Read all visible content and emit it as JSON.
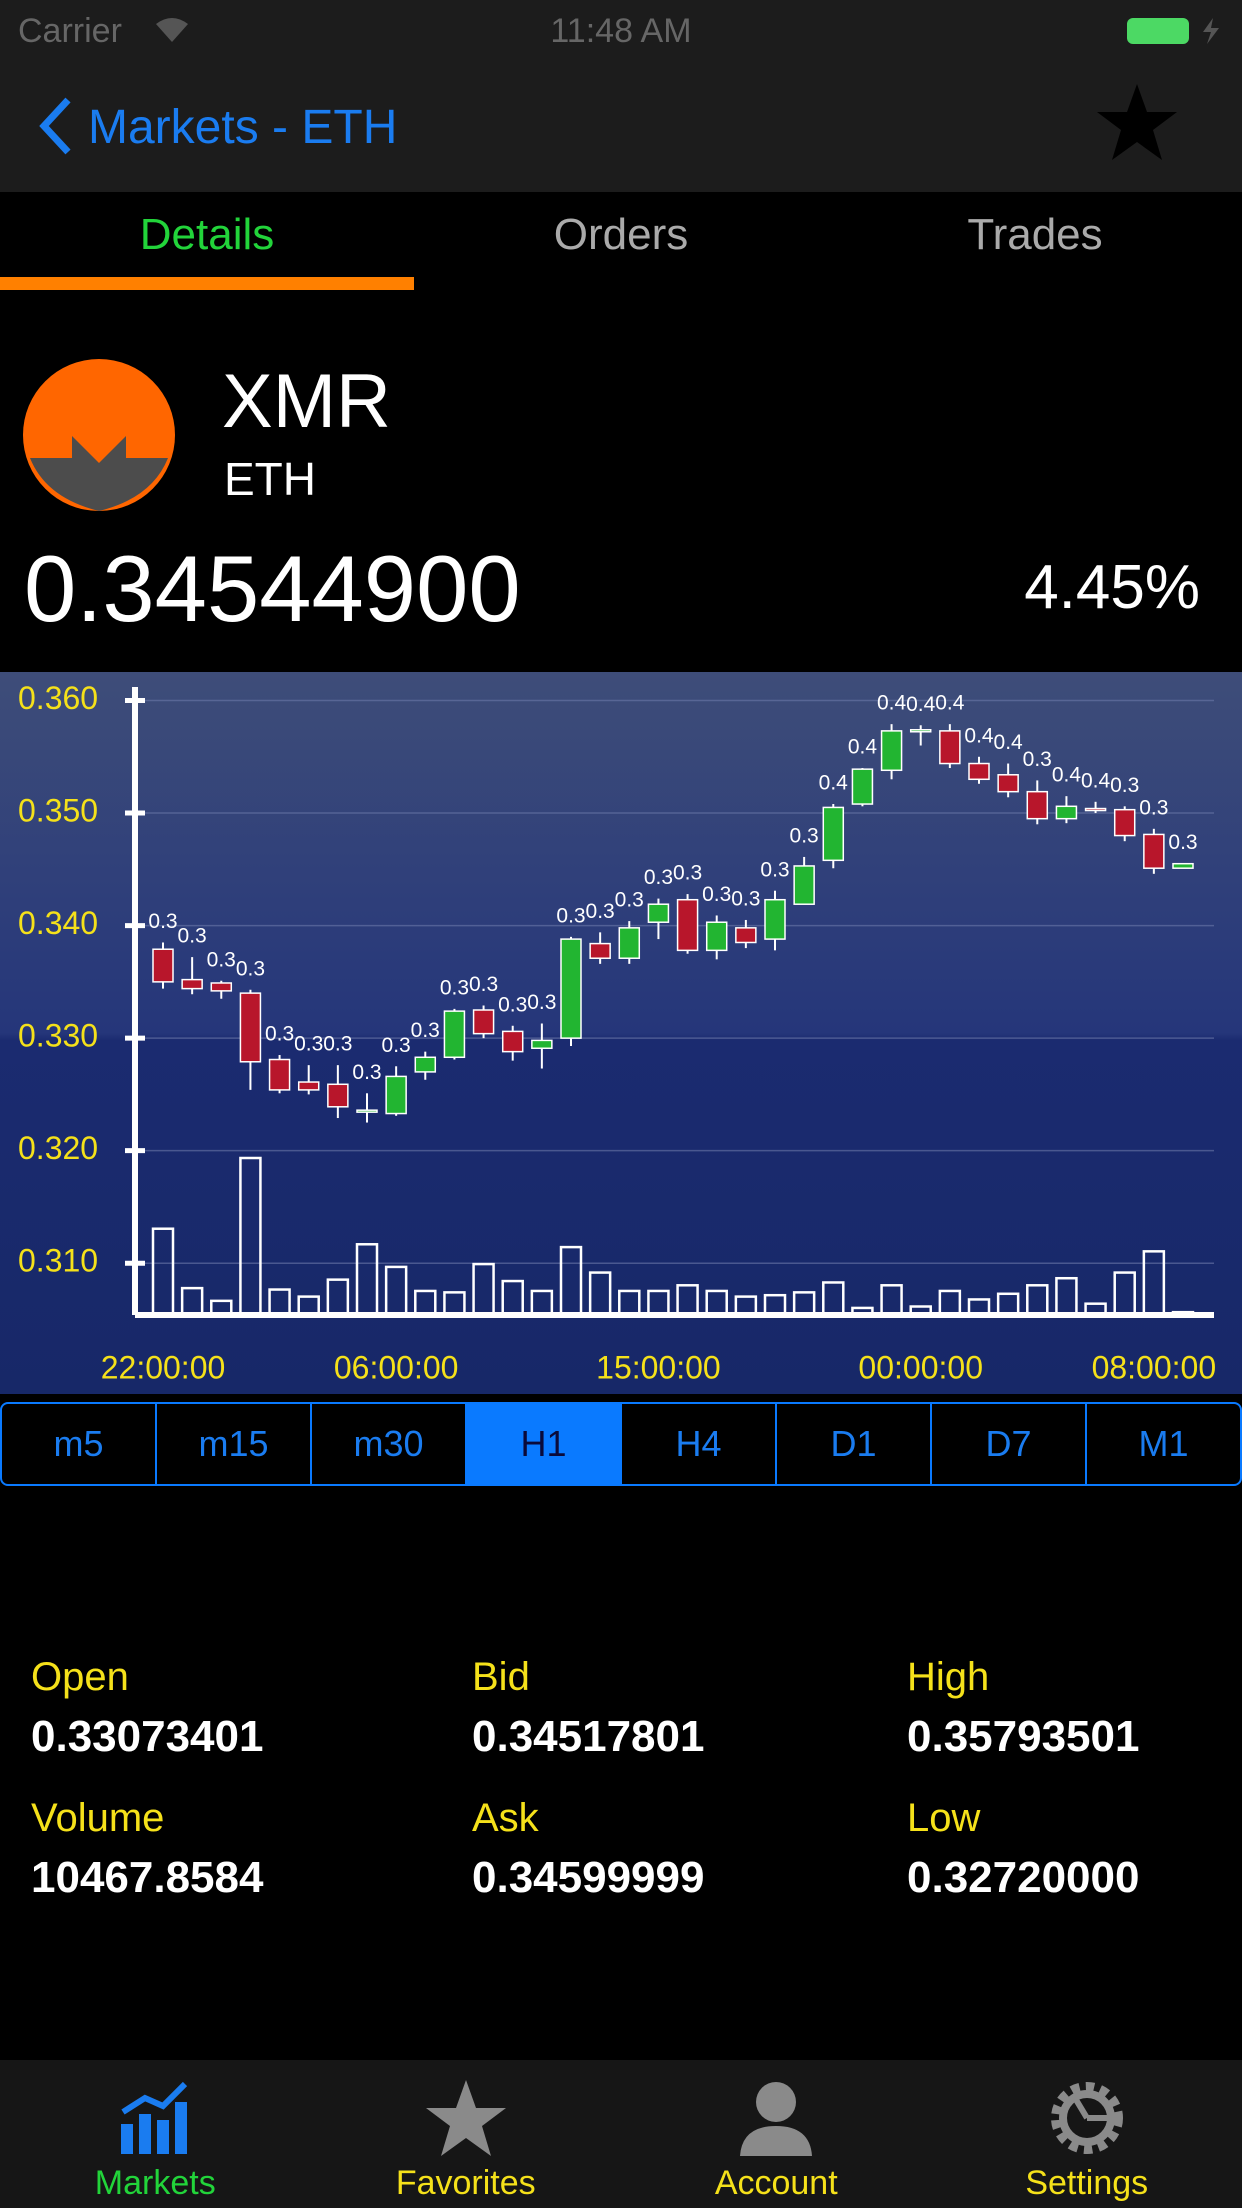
{
  "status_bar": {
    "carrier": "Carrier",
    "time": "11:48 AM"
  },
  "nav": {
    "back": "Markets - ETH"
  },
  "tabs": [
    "Details",
    "Orders",
    "Trades"
  ],
  "coin": {
    "symbol": "XMR",
    "base": "ETH",
    "price": "0.34544900",
    "change": "4.45%"
  },
  "chart_data": {
    "type": "candlestick",
    "categories": [
      "22:00:00",
      null,
      null,
      null,
      null,
      null,
      null,
      null,
      "06:00:00",
      null,
      null,
      null,
      null,
      null,
      null,
      null,
      null,
      "15:00:00",
      null,
      null,
      null,
      null,
      null,
      null,
      null,
      null,
      "00:00:00",
      null,
      null,
      null,
      null,
      null,
      null,
      null,
      "08:00:00",
      null
    ],
    "open": [
      0.3379,
      0.3352,
      0.3349,
      0.334,
      0.3281,
      0.3261,
      0.3259,
      0.3235,
      0.3233,
      0.327,
      0.3283,
      0.3325,
      0.3306,
      0.3291,
      0.33,
      0.3384,
      0.3371,
      0.3403,
      0.3423,
      0.3378,
      0.3398,
      0.3388,
      0.3419,
      0.3458,
      0.3508,
      0.3538,
      0.3573,
      0.3573,
      0.3544,
      0.3534,
      0.3519,
      0.3495,
      0.3504,
      0.3503,
      0.3481,
      0.3451
    ],
    "high": [
      0.3385,
      0.3372,
      0.3351,
      0.3343,
      0.3285,
      0.3276,
      0.3276,
      0.3251,
      0.3275,
      0.3288,
      0.3326,
      0.3329,
      0.3311,
      0.3313,
      0.339,
      0.3394,
      0.3404,
      0.3424,
      0.3428,
      0.3409,
      0.3405,
      0.3431,
      0.3461,
      0.3508,
      0.354,
      0.3579,
      0.3578,
      0.3579,
      0.355,
      0.3544,
      0.3529,
      0.3515,
      0.351,
      0.3506,
      0.3486,
      0.3455
    ],
    "low": [
      0.3344,
      0.3339,
      0.3335,
      0.3254,
      0.3251,
      0.325,
      0.3229,
      0.3225,
      0.3231,
      0.3263,
      0.3281,
      0.33,
      0.328,
      0.3273,
      0.3293,
      0.3366,
      0.3366,
      0.3388,
      0.3375,
      0.337,
      0.338,
      0.3378,
      0.3419,
      0.3451,
      0.3506,
      0.353,
      0.356,
      0.354,
      0.3526,
      0.3514,
      0.349,
      0.3491,
      0.35,
      0.3475,
      0.3446,
      0.3451
    ],
    "close": [
      0.335,
      0.3344,
      0.3342,
      0.3279,
      0.3254,
      0.3254,
      0.3239,
      0.3236,
      0.3266,
      0.3283,
      0.3324,
      0.3304,
      0.3288,
      0.3298,
      0.3388,
      0.3371,
      0.3398,
      0.3419,
      0.3378,
      0.3403,
      0.3385,
      0.3423,
      0.3453,
      0.3505,
      0.3539,
      0.3573,
      0.3574,
      0.3544,
      0.353,
      0.3519,
      0.3495,
      0.3506,
      0.3503,
      0.348,
      0.3451,
      0.3455
    ],
    "value_labels": [
      "0.3",
      "0.3",
      "0.3",
      "0.3",
      "0.3",
      "0.3",
      "0.3",
      "0.3",
      "0.3",
      "0.3",
      "0.3",
      "0.3",
      "0.3",
      "0.3",
      "0.3",
      "0.3",
      "0.3",
      "0.3",
      "0.3",
      "0.3",
      "0.3",
      "0.3",
      "0.3",
      "0.4",
      "0.4",
      "0.4",
      "0.4",
      "0.4",
      "0.4",
      "0.4",
      "0.3",
      "0.4",
      "0.4",
      "0.3",
      "0.3",
      "0.3"
    ],
    "volume": [
      61,
      19,
      10,
      111,
      18,
      13,
      25,
      50,
      34,
      17,
      16,
      36,
      24,
      17,
      48,
      30,
      17,
      17,
      21,
      17,
      13,
      14,
      16,
      23,
      5,
      21,
      6,
      17,
      11,
      15,
      21,
      26,
      8,
      30,
      45,
      2
    ],
    "up_color": "#22b531",
    "down_color": "#b8162b",
    "ylim": [
      0.3054,
      0.3612
    ],
    "yticks": [
      {
        "value": 0.31,
        "label": "0.310"
      },
      {
        "value": 0.32,
        "label": "0.320"
      },
      {
        "value": 0.33,
        "label": "0.330"
      },
      {
        "value": 0.34,
        "label": "0.340"
      },
      {
        "value": 0.35,
        "label": "0.350"
      },
      {
        "value": 0.36,
        "label": "0.360"
      }
    ],
    "grid": true
  },
  "timeframes": [
    "m5",
    "m15",
    "m30",
    "H1",
    "H4",
    "D1",
    "D7",
    "M1"
  ],
  "stats": [
    {
      "label": "Open",
      "value": "0.33073401"
    },
    {
      "label": "Bid",
      "value": "0.34517801"
    },
    {
      "label": "High",
      "value": "0.35793501"
    },
    {
      "label": "Volume",
      "value": "10467.8584"
    },
    {
      "label": "Ask",
      "value": "0.34599999"
    },
    {
      "label": "Low",
      "value": "0.32720000"
    }
  ],
  "tab_bar": [
    "Markets",
    "Favorites",
    "Account",
    "Settings"
  ]
}
